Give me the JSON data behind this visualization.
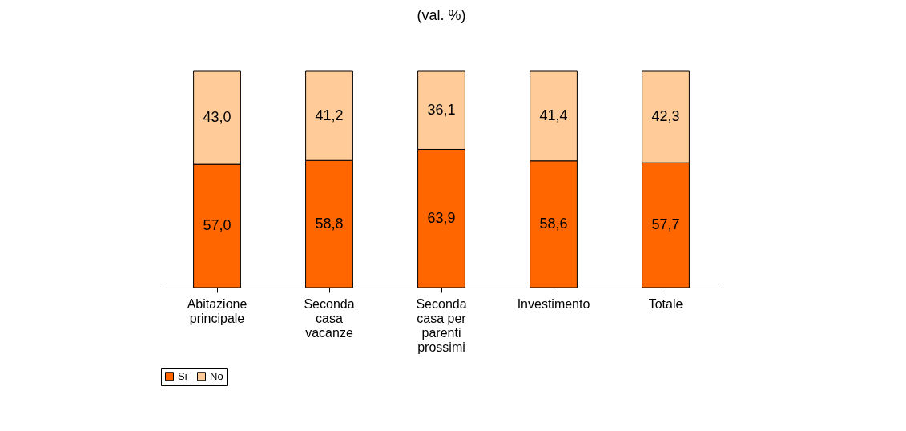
{
  "chart_data": {
    "type": "bar",
    "title": "(val. %)",
    "stacked": true,
    "legend": "bottom",
    "categories": [
      "Abitazione principale",
      "Seconda casa vacanze",
      "Seconda casa per parenti prossimi",
      "Investimento",
      "Totale"
    ],
    "series": [
      {
        "name": "Si",
        "color": "#ff6600",
        "values": [
          57.0,
          58.8,
          63.9,
          58.6,
          57.7
        ],
        "value_labels": [
          "57,0",
          "58,8",
          "63,9",
          "58,6",
          "57,7"
        ]
      },
      {
        "name": "No",
        "color": "#ffcc99",
        "values": [
          43.0,
          41.2,
          36.1,
          41.4,
          42.3
        ],
        "value_labels": [
          "43,0",
          "41,2",
          "36,1",
          "41,4",
          "42,3"
        ]
      }
    ]
  }
}
